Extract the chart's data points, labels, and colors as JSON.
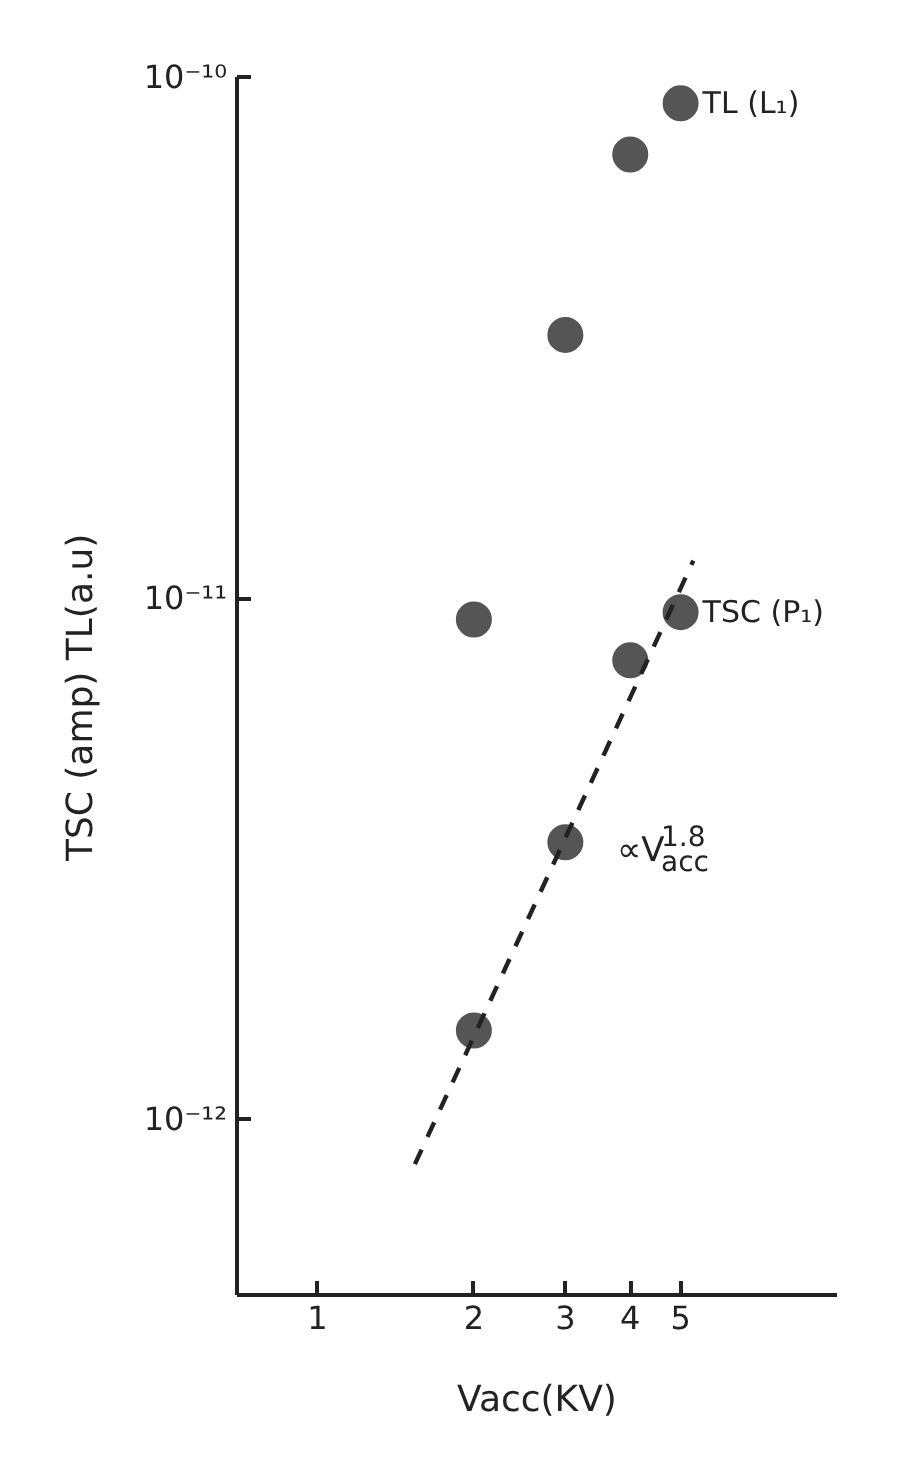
{
  "chart_data": {
    "type": "scatter",
    "xlabel": "Vacc(KV)",
    "ylabel": "TSC (amp)   TL(a.u)",
    "log": "xy",
    "xlim": [
      0.7,
      10
    ],
    "xticks": [
      1,
      2,
      3,
      4,
      5
    ],
    "ylim": [
      4.6e-13,
      1e-10
    ],
    "yticks": [
      {
        "value": 1e-12,
        "label": "10⁻¹²"
      },
      {
        "value": 1e-11,
        "label": "10⁻¹¹"
      },
      {
        "value": 1e-10,
        "label": "10⁻¹⁰"
      }
    ],
    "marker": "circle",
    "grid": false,
    "series": [
      {
        "name": "TL (L₁)",
        "color": "#555555",
        "x": [
          2,
          3,
          4,
          5
        ],
        "values": [
          9.1e-12,
          3.2e-11,
          7.1e-11,
          8.9e-11
        ]
      },
      {
        "name": "TSC (P₁)",
        "color": "#555555",
        "x": [
          2,
          3,
          4,
          5
        ],
        "values": [
          1.48e-12,
          3.4e-12,
          7.6e-12,
          9.4e-12
        ]
      },
      {
        "type": "line",
        "marker": "none",
        "line_style": "dashed",
        "color": "#222222",
        "x": [
          1.54,
          5.29
        ],
        "values": [
          8.2e-13,
          1.18e-11
        ]
      }
    ],
    "annotations": [
      "∝V$_{acc}$$^{1.8}$"
    ]
  }
}
